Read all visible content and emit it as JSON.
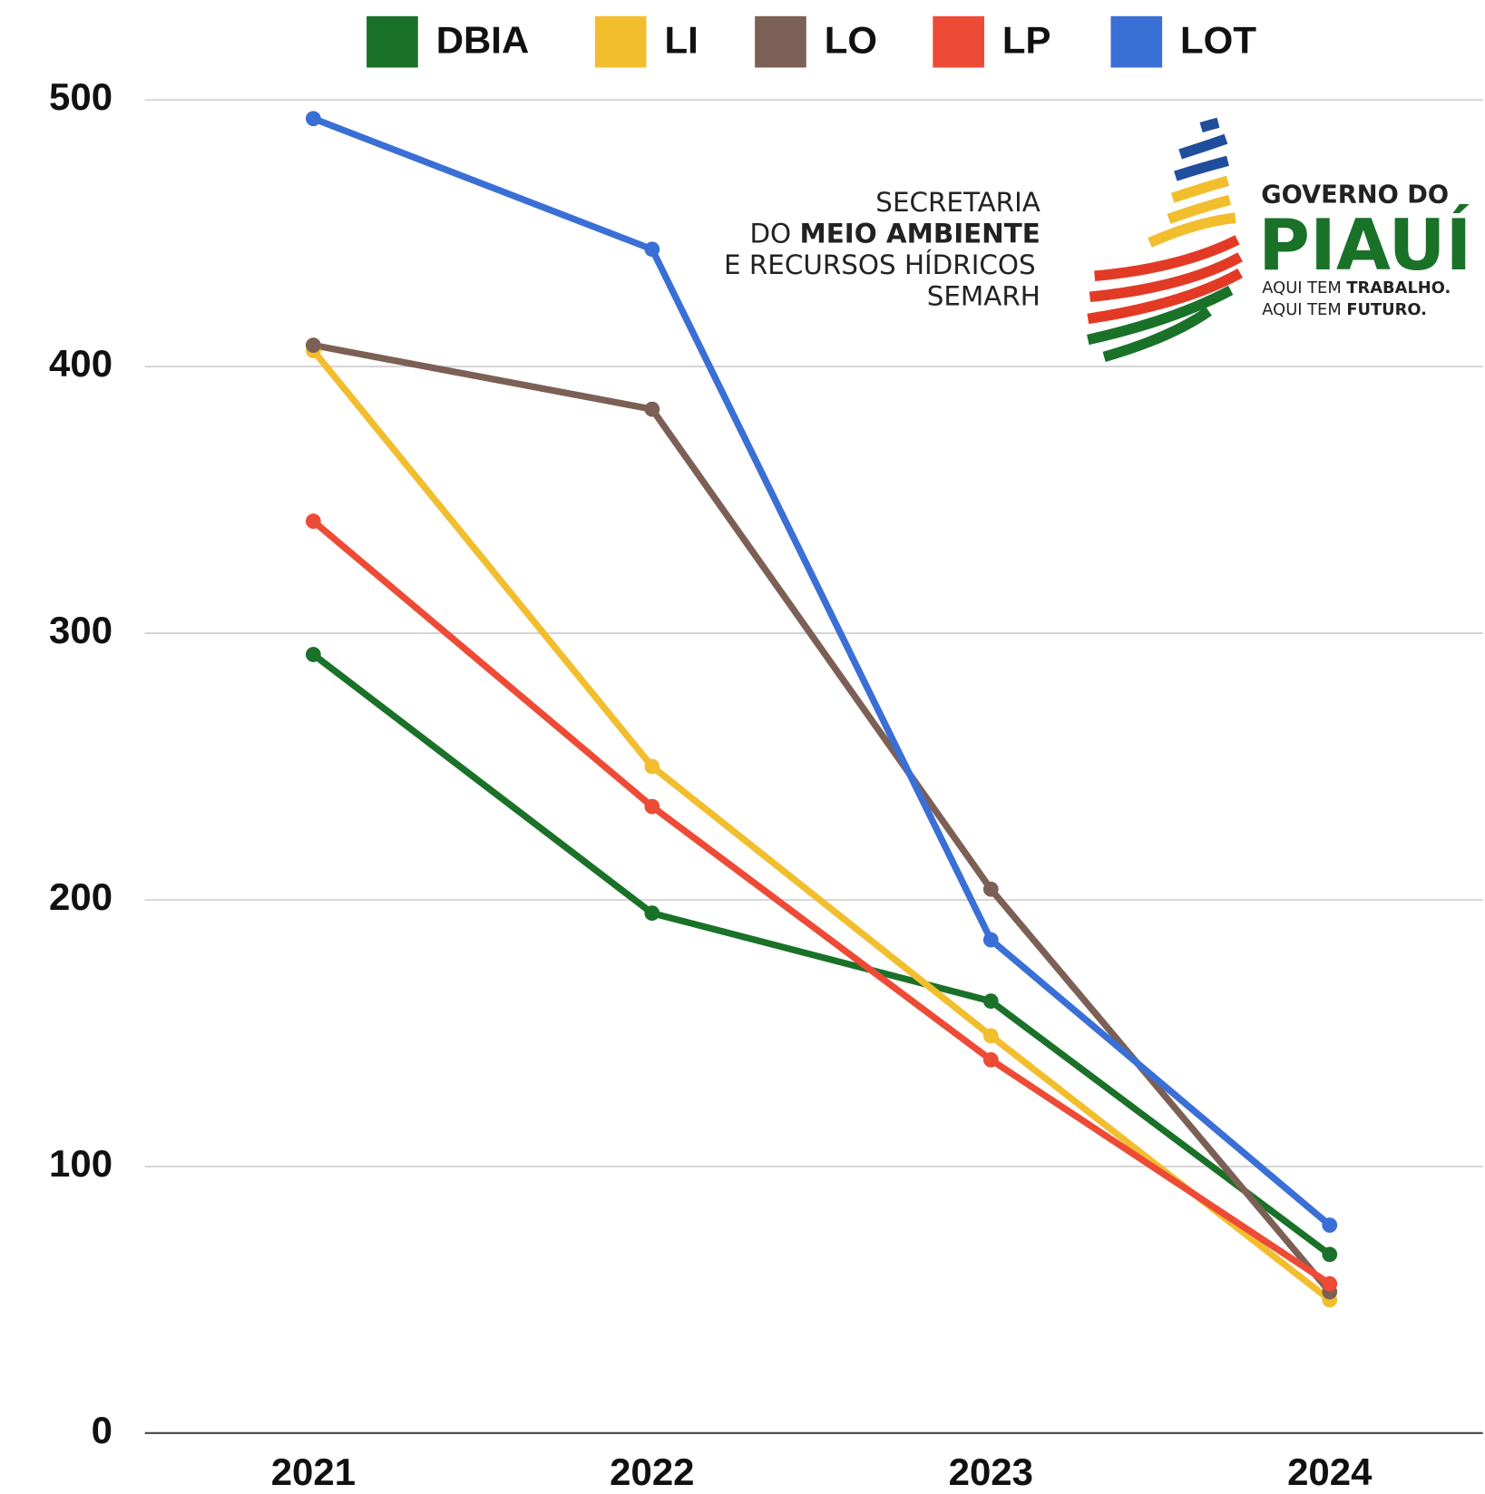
{
  "chart_data": {
    "type": "line",
    "categories": [
      "2021",
      "2022",
      "2023",
      "2024"
    ],
    "series": [
      {
        "name": "DBIA",
        "color": "#1a7128",
        "values": [
          292,
          195,
          162,
          67
        ]
      },
      {
        "name": "LI",
        "color": "#f2be2e",
        "values": [
          406,
          250,
          149,
          50
        ]
      },
      {
        "name": "LO",
        "color": "#7c6055",
        "values": [
          408,
          384,
          204,
          53
        ]
      },
      {
        "name": "LP",
        "color": "#ee4b36",
        "values": [
          342,
          235,
          140,
          56
        ]
      },
      {
        "name": "LOT",
        "color": "#3a6fd6",
        "values": [
          493,
          444,
          185,
          78
        ]
      }
    ],
    "ylim": [
      0,
      500
    ],
    "yticks": [
      0,
      100,
      200,
      300,
      400,
      500
    ],
    "grid": true,
    "legend": "top"
  },
  "logo": {
    "line1": "SECRETARIA",
    "line2_prefix": "DO ",
    "line2_bold": "MEIO AMBIENTE",
    "line3": "E RECURSOS HÍDRICOS",
    "line4": "SEMARH",
    "gov": "GOVERNO DO",
    "state": "PIAUÍ",
    "slogan1_prefix": "AQUI TEM ",
    "slogan1_bold": "TRABALHO.",
    "slogan2_prefix": "AQUI TEM ",
    "slogan2_bold": "FUTURO."
  }
}
